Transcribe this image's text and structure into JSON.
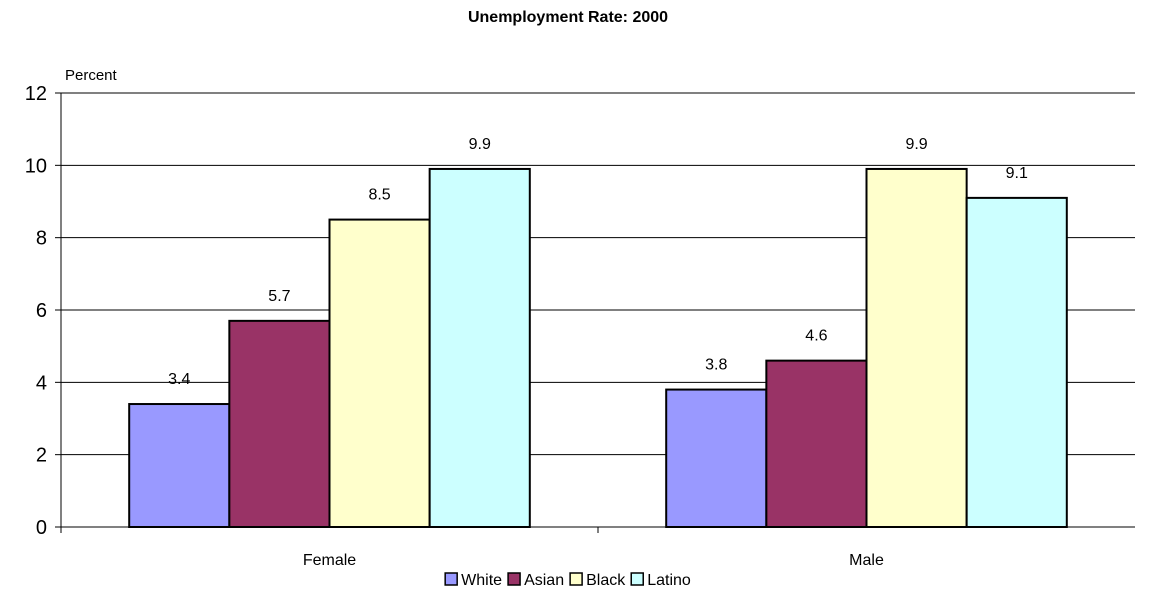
{
  "chart_data": {
    "type": "bar",
    "title": "Unemployment Rate:  2000",
    "ylabel": "Percent",
    "xlabel": "",
    "categories": [
      "Female",
      "Male"
    ],
    "series": [
      {
        "name": "White",
        "values": [
          3.4,
          3.8
        ],
        "color": "#9999ff"
      },
      {
        "name": "Asian",
        "values": [
          5.7,
          4.6
        ],
        "color": "#993366"
      },
      {
        "name": "Black",
        "values": [
          8.5,
          9.9
        ],
        "color": "#ffffcc"
      },
      {
        "name": "Latino",
        "values": [
          9.9,
          9.1
        ],
        "color": "#ccffff"
      }
    ],
    "ylim": [
      0,
      12
    ],
    "yticks": [
      0,
      2,
      4,
      6,
      8,
      10,
      12
    ],
    "grid": true,
    "legend_position": "bottom",
    "data_labels": true
  }
}
